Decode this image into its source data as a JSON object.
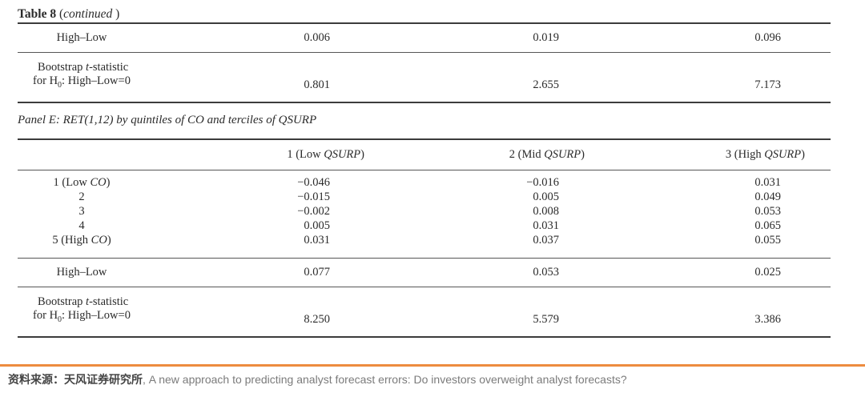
{
  "title": {
    "bold": "Table 8",
    "open": " (",
    "italic": "continued",
    "close": " )"
  },
  "continuation_table": {
    "high_low": {
      "label": "High–Low",
      "values": [
        "0.006",
        "0.019",
        "0.096"
      ]
    },
    "bootstrap": {
      "line1_pre": "Bootstrap ",
      "line1_italic": "t",
      "line1_post": "-statistic",
      "line2_pre": "for H",
      "line2_sub": "0",
      "line2_post": ": High–Low=0",
      "values": [
        "0.801",
        "2.655",
        "7.173"
      ]
    }
  },
  "panel_e": {
    "heading": "Panel E: RET(1,12) by quintiles of CO and terciles of QSURP",
    "columns": [
      {
        "pre": "1 (Low ",
        "italic": "QSURP",
        "post": ")"
      },
      {
        "pre": "2 (Mid ",
        "italic": "QSURP",
        "post": ")"
      },
      {
        "pre": "3 (High ",
        "italic": "QSURP",
        "post": ")"
      }
    ],
    "rows": [
      {
        "pre": "1 (Low ",
        "italic": "CO",
        "post": ")",
        "values": [
          "−0.046",
          "−0.016",
          "0.031"
        ]
      },
      {
        "pre": "2",
        "italic": "",
        "post": "",
        "values": [
          "−0.015",
          "0.005",
          "0.049"
        ]
      },
      {
        "pre": "3",
        "italic": "",
        "post": "",
        "values": [
          "−0.002",
          "0.008",
          "0.053"
        ]
      },
      {
        "pre": "4",
        "italic": "",
        "post": "",
        "values": [
          "0.005",
          "0.031",
          "0.065"
        ]
      },
      {
        "pre": "5 (High ",
        "italic": "CO",
        "post": ")",
        "values": [
          "0.031",
          "0.037",
          "0.055"
        ]
      }
    ],
    "high_low": {
      "label": "High–Low",
      "values": [
        "0.077",
        "0.053",
        "0.025"
      ]
    },
    "bootstrap": {
      "line1_pre": "Bootstrap ",
      "line1_italic": "t",
      "line1_post": "-statistic",
      "line2_pre": "for H",
      "line2_sub": "0",
      "line2_post": ": High–Low=0",
      "values": [
        "8.250",
        "5.579",
        "3.386"
      ]
    }
  },
  "footer": {
    "source_zh": "资料来源：天风证券研究所",
    "source_en": ", A new approach to predicting analyst forecast errors: Do investors overweight analyst forecasts?",
    "accent_color": "#ED8C3F"
  }
}
